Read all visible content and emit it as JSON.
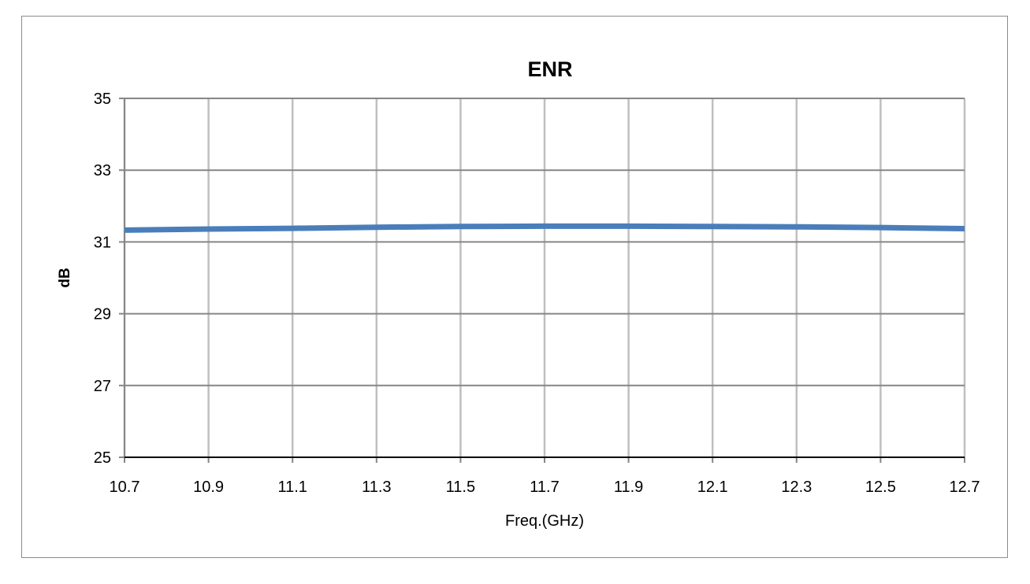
{
  "chart_data": {
    "type": "line",
    "title": "ENR",
    "xlabel": "Freq.(GHz)",
    "ylabel": "dB",
    "xlim": [
      10.7,
      12.7
    ],
    "ylim": [
      25,
      35
    ],
    "x_ticks": [
      "10.7",
      "10.9",
      "11.1",
      "11.3",
      "11.5",
      "11.7",
      "11.9",
      "12.1",
      "12.3",
      "12.5",
      "12.7"
    ],
    "y_ticks": [
      "25",
      "27",
      "29",
      "31",
      "33",
      "35"
    ],
    "grid": true,
    "legend": "none",
    "series": [
      {
        "color": "#4a7ebb",
        "x": [
          10.7,
          10.9,
          11.1,
          11.3,
          11.5,
          11.7,
          11.9,
          12.1,
          12.3,
          12.5,
          12.7
        ],
        "y": [
          31.33,
          31.36,
          31.38,
          31.41,
          31.43,
          31.44,
          31.44,
          31.43,
          31.42,
          31.4,
          31.37
        ]
      }
    ]
  }
}
